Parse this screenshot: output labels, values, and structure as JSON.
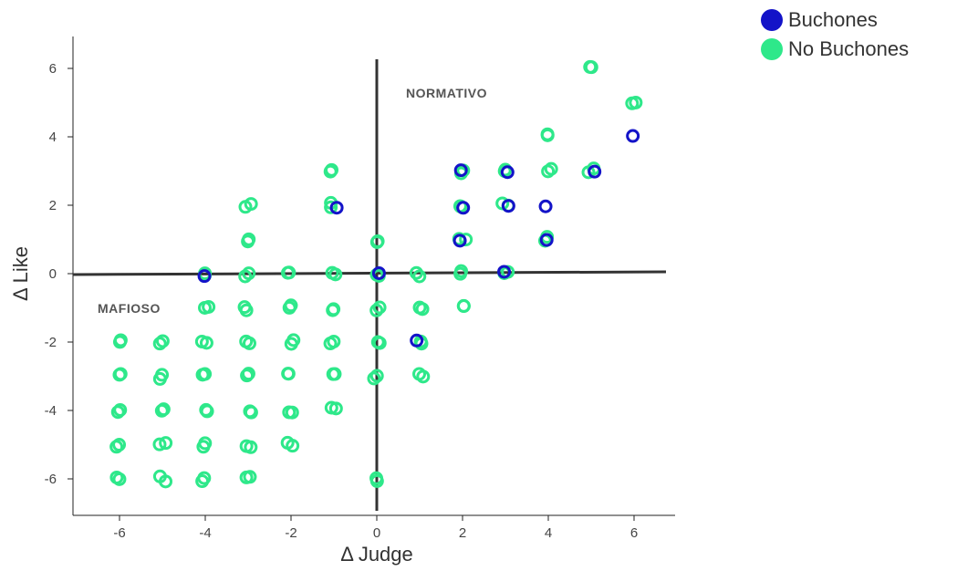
{
  "chart_data": {
    "type": "scatter",
    "title": "",
    "xlabel": "Δ Judge",
    "ylabel": "Δ Like",
    "xlim": [
      -7,
      7
    ],
    "ylim": [
      -7,
      7
    ],
    "xticks": [
      -6,
      -4,
      -2,
      0,
      2,
      4,
      6
    ],
    "yticks": [
      -6,
      -4,
      -2,
      0,
      2,
      4,
      6
    ],
    "grid": false,
    "legend_position": "top-right",
    "annotations": [
      "NORMATIVO",
      "MAFIOSO"
    ],
    "series": [
      {
        "name": "No Buchones",
        "color": "#2ee88a",
        "points": [
          [
            -6,
            -6
          ],
          [
            -6,
            -5
          ],
          [
            -6,
            -4
          ],
          [
            -6,
            -3
          ],
          [
            -6,
            -2
          ],
          [
            -5,
            -6
          ],
          [
            -5,
            -5
          ],
          [
            -5,
            -4
          ],
          [
            -5,
            -3
          ],
          [
            -5,
            -2
          ],
          [
            -4,
            -6
          ],
          [
            -4,
            -5
          ],
          [
            -4,
            -4
          ],
          [
            -4,
            -3
          ],
          [
            -4,
            -2
          ],
          [
            -4,
            -1
          ],
          [
            -4,
            0
          ],
          [
            -3,
            -6
          ],
          [
            -3,
            -5
          ],
          [
            -3,
            -4
          ],
          [
            -3,
            -3
          ],
          [
            -3,
            -2
          ],
          [
            -3,
            -1
          ],
          [
            -3,
            0
          ],
          [
            -3,
            1
          ],
          [
            -3,
            2
          ],
          [
            -2,
            -5
          ],
          [
            -2,
            -4
          ],
          [
            -2,
            -3
          ],
          [
            -2,
            -2
          ],
          [
            -2,
            -1
          ],
          [
            -2,
            0
          ],
          [
            -1,
            -4
          ],
          [
            -1,
            -3
          ],
          [
            -1,
            -2
          ],
          [
            -1,
            -1
          ],
          [
            -1,
            0
          ],
          [
            -1,
            2
          ],
          [
            -1,
            3
          ],
          [
            0,
            -6
          ],
          [
            0,
            -3
          ],
          [
            0,
            -2
          ],
          [
            0,
            -1
          ],
          [
            0,
            0
          ],
          [
            0,
            1
          ],
          [
            1,
            -3
          ],
          [
            1,
            -2
          ],
          [
            1,
            -1
          ],
          [
            1,
            0
          ],
          [
            2,
            -1
          ],
          [
            2,
            0
          ],
          [
            2,
            1
          ],
          [
            2,
            2
          ],
          [
            2,
            3
          ],
          [
            3,
            0
          ],
          [
            3,
            2
          ],
          [
            3,
            3
          ],
          [
            4,
            1
          ],
          [
            4,
            3
          ],
          [
            4,
            4
          ],
          [
            5,
            3
          ],
          [
            5,
            6
          ],
          [
            6,
            5
          ]
        ]
      },
      {
        "name": "Buchones",
        "color": "#1313c8",
        "points": [
          [
            -1,
            2
          ],
          [
            -4,
            0
          ],
          [
            0,
            0
          ],
          [
            1,
            -2
          ],
          [
            2,
            1
          ],
          [
            2,
            2
          ],
          [
            2,
            3
          ],
          [
            3,
            0
          ],
          [
            3,
            2
          ],
          [
            3,
            3
          ],
          [
            4,
            1
          ],
          [
            4,
            2
          ],
          [
            5,
            3
          ],
          [
            6,
            4
          ]
        ]
      }
    ]
  }
}
